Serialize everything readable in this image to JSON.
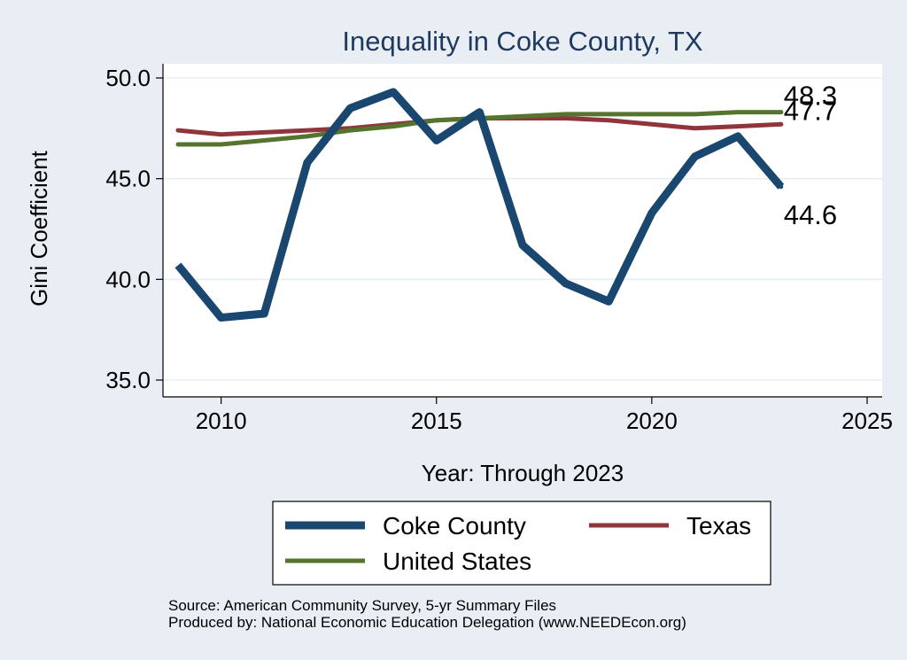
{
  "chart_data": {
    "type": "line",
    "title": "Inequality in Coke County, TX",
    "xlabel": "Year: Through 2023",
    "ylabel": "Gini Coefficient",
    "xlim": [
      2009,
      2025
    ],
    "ylim": [
      35,
      50
    ],
    "x_ticks": [
      "2010",
      "2015",
      "2020",
      "2025"
    ],
    "y_ticks": [
      "35.0",
      "40.0",
      "45.0",
      "50.0"
    ],
    "x": [
      2009,
      2010,
      2011,
      2012,
      2013,
      2014,
      2015,
      2016,
      2017,
      2018,
      2019,
      2020,
      2021,
      2022,
      2023
    ],
    "series": [
      {
        "name": "Coke County",
        "color": "#1a476f",
        "values": [
          40.7,
          38.1,
          38.3,
          45.8,
          48.5,
          49.3,
          46.9,
          48.3,
          41.7,
          39.8,
          38.9,
          43.3,
          46.1,
          47.1,
          44.6
        ],
        "end_label": "44.6"
      },
      {
        "name": "Texas",
        "color": "#90353b",
        "values": [
          47.4,
          47.2,
          47.3,
          47.4,
          47.5,
          47.7,
          47.9,
          48.0,
          48.0,
          48.0,
          47.9,
          47.7,
          47.5,
          47.6,
          47.7
        ],
        "end_label": "47.7"
      },
      {
        "name": "United States",
        "color": "#55752f",
        "values": [
          46.7,
          46.7,
          46.9,
          47.1,
          47.4,
          47.6,
          47.9,
          48.0,
          48.1,
          48.2,
          48.2,
          48.2,
          48.2,
          48.3,
          48.3
        ],
        "end_label": "48.3"
      }
    ],
    "legend": {
      "position": "bottom",
      "items": [
        "Coke County",
        "Texas",
        "United States"
      ]
    }
  },
  "source": {
    "line1": "Source: American Community Survey, 5-yr Summary Files",
    "line2": "Produced by: National Economic Education Delegation (www.NEEDEcon.org)"
  }
}
